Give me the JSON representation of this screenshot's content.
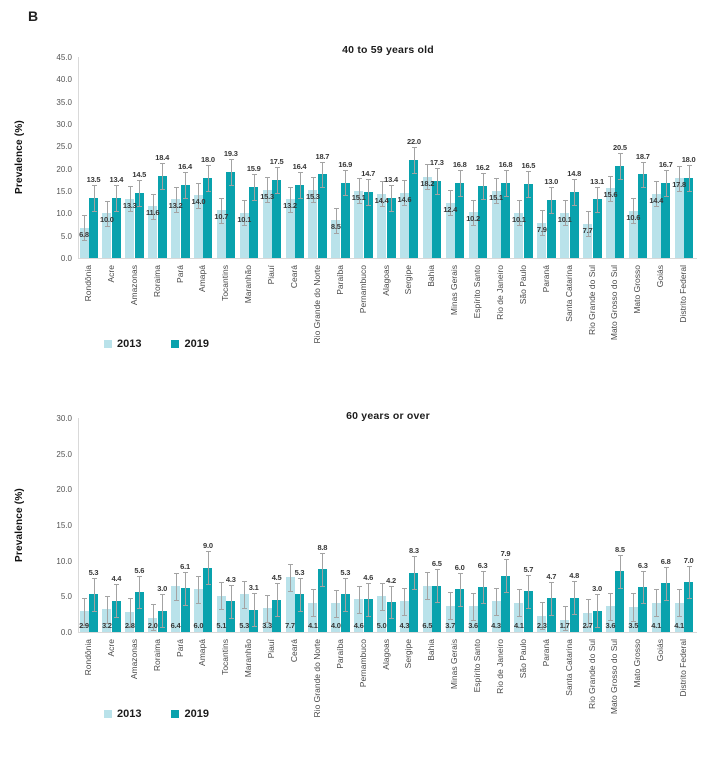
{
  "figure_label": "B",
  "colors": {
    "y2013": "#b9e2ea",
    "y2019": "#09a2ad",
    "error_bar": "#a3a3a3"
  },
  "legend": {
    "items": [
      {
        "label": "2013"
      },
      {
        "label": "2019"
      }
    ]
  },
  "chart_data": [
    {
      "type": "bar",
      "title": "40 to 59 years old",
      "xlabel": "",
      "ylabel": "Prevalence (%)",
      "ylim": [
        0,
        45
      ],
      "ytick_step": 5,
      "grid": false,
      "legend_position": "bottom-left",
      "error_bars": true,
      "approx_error_halfwidth": [
        2.8,
        2.9
      ],
      "categories": [
        "Rondônia",
        "Acre",
        "Amazonas",
        "Roraima",
        "Pará",
        "Amapá",
        "Tocantins",
        "Maranhão",
        "Piauí",
        "Ceará",
        "Rio Grande do Norte",
        "Paraíba",
        "Pernambuco",
        "Alagoas",
        "Sergipe",
        "Bahia",
        "Minas Gerais",
        "Espírito Santo",
        "Rio de Janeiro",
        "São Paulo",
        "Paraná",
        "Santa Catarina",
        "Rio Grande do Sul",
        "Mato Grosso do Sul",
        "Mato Grosso",
        "Goiás",
        "Distrito Federal"
      ],
      "series": [
        {
          "name": "2013",
          "color": "#b9e2ea",
          "values": [
            6.8,
            10.0,
            13.3,
            11.6,
            13.2,
            14.0,
            10.7,
            10.1,
            15.3,
            13.2,
            15.3,
            8.5,
            15.1,
            14.4,
            14.6,
            18.2,
            12.4,
            10.2,
            15.1,
            10.1,
            7.9,
            10.1,
            7.7,
            15.6,
            10.6,
            14.4,
            17.8
          ]
        },
        {
          "name": "2019",
          "color": "#09a2ad",
          "values": [
            13.5,
            13.4,
            14.5,
            18.4,
            16.4,
            18.0,
            19.3,
            15.9,
            17.5,
            16.4,
            18.7,
            16.9,
            14.7,
            13.4,
            22.0,
            17.3,
            16.8,
            16.2,
            16.8,
            16.5,
            13.0,
            14.8,
            13.1,
            20.5,
            18.7,
            16.7,
            18.0
          ]
        }
      ]
    },
    {
      "type": "bar",
      "title": "60 years or over",
      "xlabel": "",
      "ylabel": "Prevalence (%)",
      "ylim": [
        0,
        30
      ],
      "ytick_step": 5,
      "grid": false,
      "legend_position": "bottom-left",
      "error_bars": true,
      "approx_error_halfwidth": [
        1.9,
        2.3
      ],
      "categories": [
        "Rondônia",
        "Acre",
        "Amazonas",
        "Roraima",
        "Pará",
        "Amapá",
        "Tocantins",
        "Maranhão",
        "Piauí",
        "Ceará",
        "Rio Grande do Norte",
        "Paraíba",
        "Pernambuco",
        "Alagoas",
        "Sergipe",
        "Bahia",
        "Minas Gerais",
        "Espírito Santo",
        "Rio de Janeiro",
        "São Paulo",
        "Paraná",
        "Santa Catarina",
        "Rio Grande do Sul",
        "Mato Grosso do Sul",
        "Mato Grosso",
        "Goiás",
        "Distrito Federal"
      ],
      "series": [
        {
          "name": "2013",
          "color": "#b9e2ea",
          "values": [
            2.9,
            3.2,
            2.8,
            2.0,
            6.4,
            6.0,
            5.1,
            5.3,
            3.3,
            7.7,
            4.1,
            4.0,
            4.6,
            5.0,
            4.3,
            6.5,
            3.7,
            3.6,
            4.3,
            4.1,
            2.3,
            1.7,
            2.7,
            3.6,
            3.5,
            4.1,
            4.1
          ]
        },
        {
          "name": "2019",
          "color": "#09a2ad",
          "values": [
            5.3,
            4.4,
            5.6,
            3.0,
            6.1,
            9.0,
            4.3,
            3.1,
            4.5,
            5.3,
            8.8,
            5.3,
            4.6,
            4.2,
            8.3,
            6.5,
            6.0,
            6.3,
            7.9,
            5.7,
            4.7,
            4.8,
            3.0,
            8.5,
            6.3,
            6.8,
            7.0
          ]
        }
      ]
    }
  ]
}
